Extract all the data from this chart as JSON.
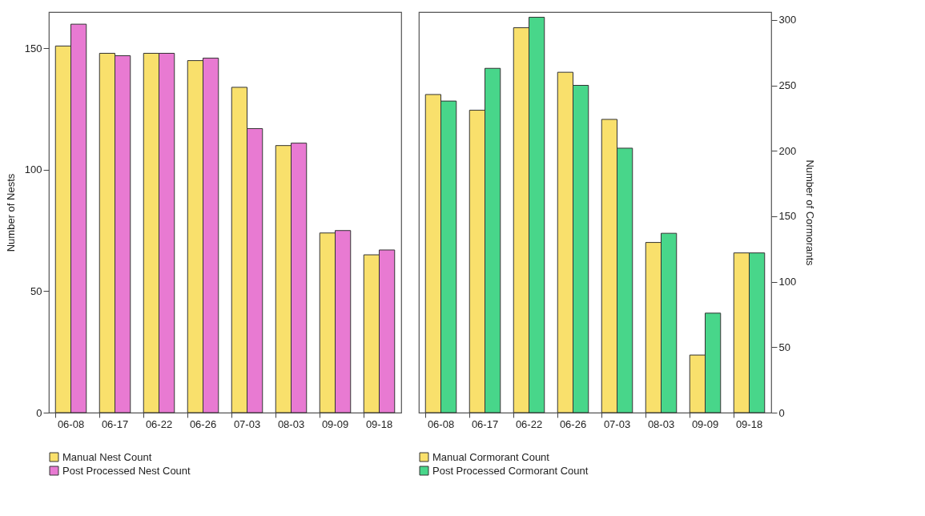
{
  "chart_data": [
    {
      "type": "bar",
      "categories": [
        "06-08",
        "06-17",
        "06-22",
        "06-26",
        "07-03",
        "08-03",
        "09-09",
        "09-18"
      ],
      "ylabel": "Number of Nests",
      "ylim": [
        0,
        165
      ],
      "yticks": [
        0,
        50,
        100,
        150
      ],
      "grid": false,
      "legend": "bottom",
      "series": [
        {
          "name": "Manual Nest Count",
          "color": "#f9e06c",
          "values": [
            151,
            148,
            148,
            145,
            134,
            110,
            74,
            65
          ]
        },
        {
          "name": "Post Processed Nest Count",
          "color": "#e87ad2",
          "values": [
            160,
            147,
            148,
            146,
            117,
            111,
            75,
            67
          ]
        }
      ]
    },
    {
      "type": "bar",
      "categories": [
        "06-08",
        "06-17",
        "06-22",
        "06-26",
        "07-03",
        "08-03",
        "09-09",
        "09-18"
      ],
      "y2label": "Number of Cormorants",
      "y2lim": [
        0,
        306
      ],
      "y2ticks": [
        0,
        50,
        100,
        150,
        200,
        250,
        300
      ],
      "grid": false,
      "legend": "bottom",
      "series": [
        {
          "name": "Manual Cormorant Count",
          "color": "#f9e06c",
          "axis": "y2",
          "values": [
            243,
            231,
            294,
            260,
            224,
            130,
            44,
            122
          ]
        },
        {
          "name": "Post Processed Cormorant Count",
          "color": "#48d68a",
          "axis": "y2",
          "values": [
            238,
            263,
            302,
            250,
            202,
            137,
            76,
            122
          ]
        }
      ]
    }
  ]
}
